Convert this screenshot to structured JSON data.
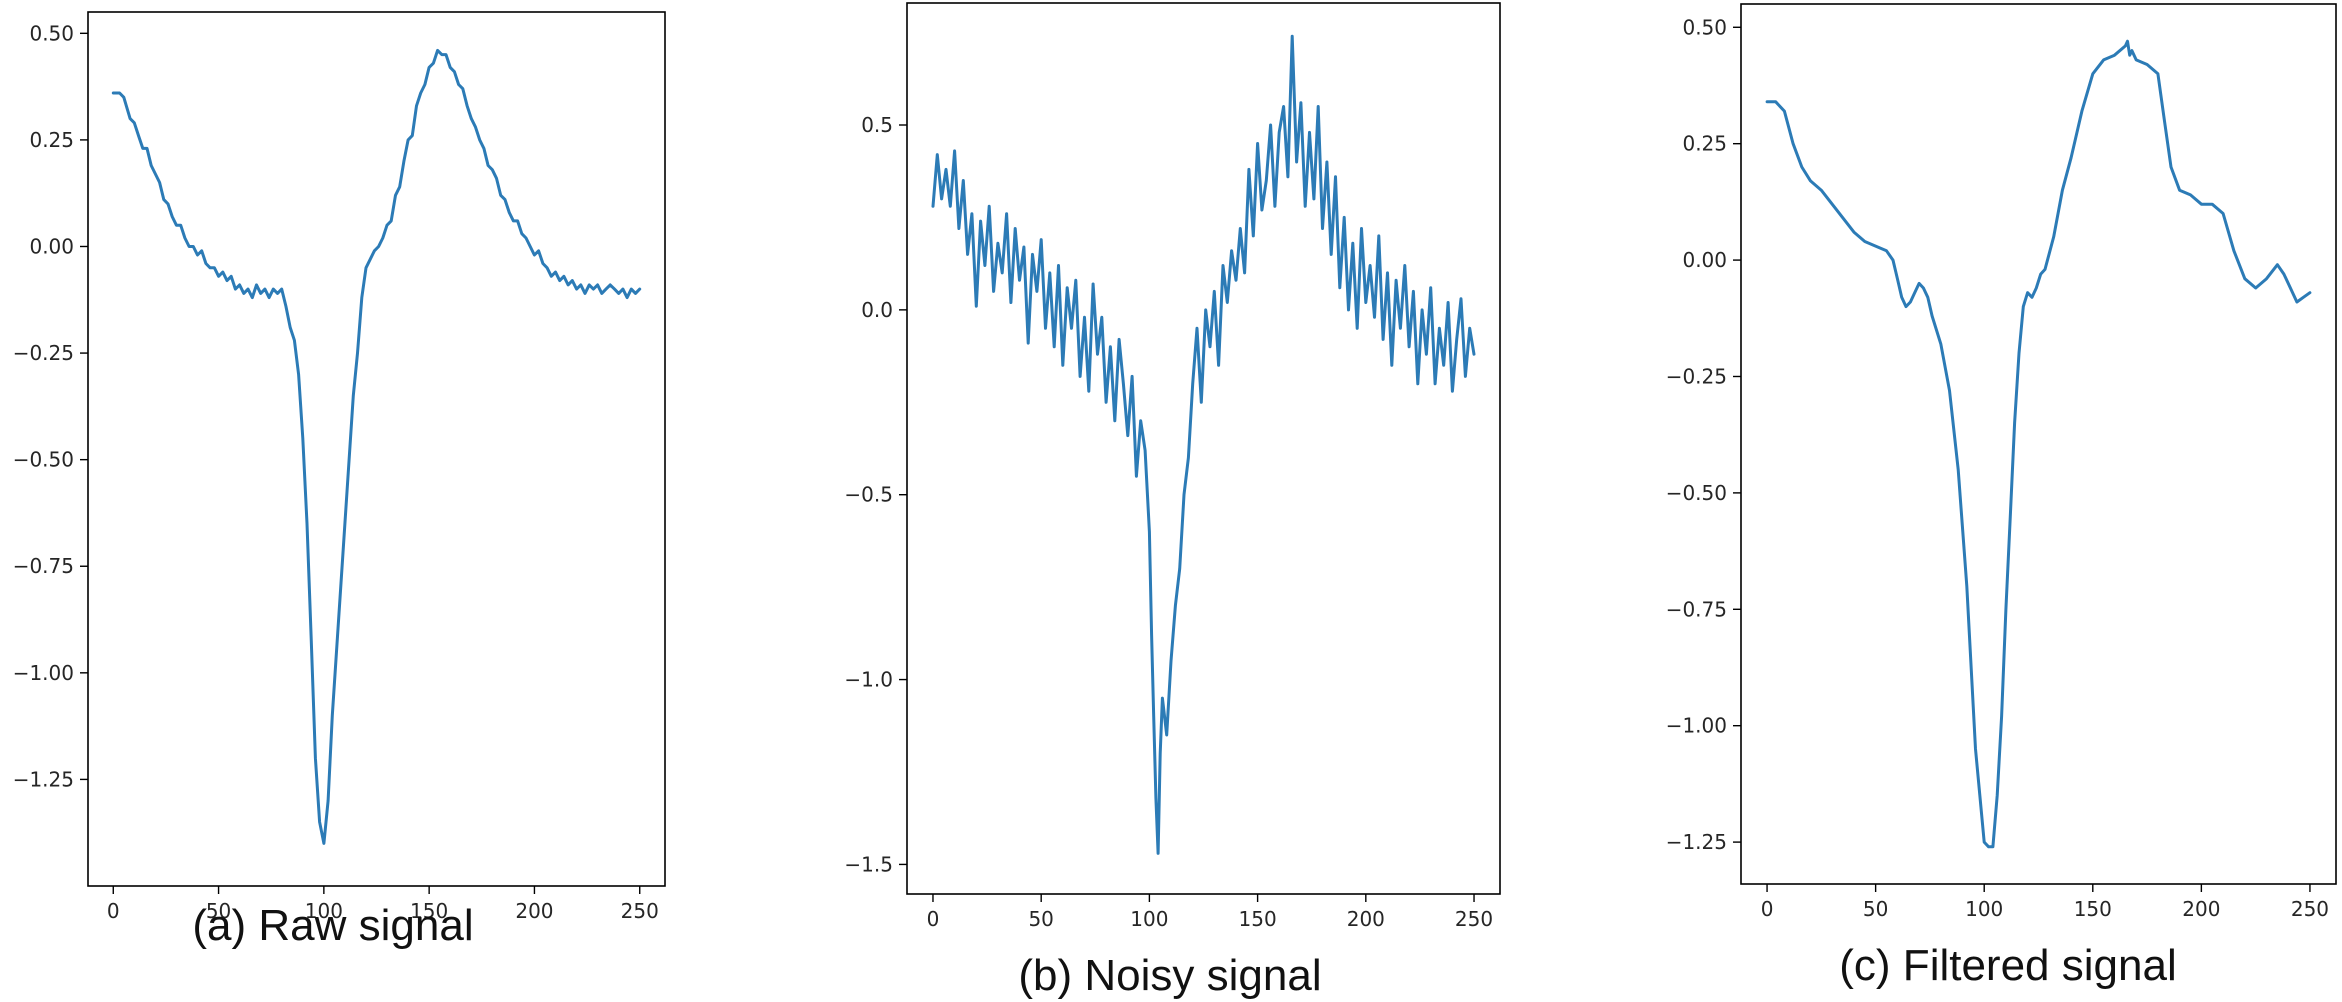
{
  "colors": {
    "series": "#2c7bb6",
    "axis": "#000000",
    "text": "#262626"
  },
  "chart_data": [
    {
      "type": "line",
      "title": "",
      "caption": "(a) Raw signal",
      "xlabel": "",
      "ylabel": "",
      "grid": false,
      "xlim": [
        -12,
        262
      ],
      "ylim": [
        -1.5,
        0.55
      ],
      "x_ticks": [
        0,
        50,
        100,
        150,
        200,
        250
      ],
      "x_tick_labels": [
        "0",
        "50",
        "100",
        "150",
        "200",
        "250"
      ],
      "y_ticks": [
        0.5,
        0.25,
        0.0,
        -0.25,
        -0.5,
        -0.75,
        -1.0,
        -1.25
      ],
      "y_tick_labels": [
        "0.50",
        "0.25",
        "0.00",
        "−0.25",
        "−0.50",
        "−0.75",
        "−1.00",
        "−1.25"
      ],
      "series": [
        {
          "x": [
            0,
            3,
            5,
            8,
            10,
            12,
            14,
            16,
            18,
            20,
            22,
            24,
            26,
            28,
            30,
            32,
            34,
            36,
            38,
            40,
            42,
            44,
            46,
            48,
            50,
            52,
            54,
            56,
            58,
            60,
            62,
            64,
            66,
            68,
            70,
            72,
            74,
            76,
            78,
            80,
            82,
            84,
            86,
            88,
            90,
            92,
            94,
            96,
            98,
            100,
            102,
            104,
            106,
            108,
            110,
            112,
            114,
            116,
            118,
            120,
            122,
            124,
            126,
            128,
            130,
            132,
            134,
            136,
            138,
            140,
            142,
            144,
            146,
            148,
            150,
            152,
            154,
            156,
            158,
            160,
            162,
            164,
            166,
            168,
            170,
            172,
            174,
            176,
            178,
            180,
            182,
            184,
            186,
            188,
            190,
            192,
            194,
            196,
            198,
            200,
            202,
            204,
            206,
            208,
            210,
            212,
            214,
            216,
            218,
            220,
            222,
            224,
            226,
            228,
            230,
            232,
            234,
            236,
            238,
            240,
            242,
            244,
            246,
            248,
            250
          ],
          "y": [
            0.36,
            0.36,
            0.35,
            0.3,
            0.29,
            0.26,
            0.23,
            0.23,
            0.19,
            0.17,
            0.15,
            0.11,
            0.1,
            0.07,
            0.05,
            0.05,
            0.02,
            0.0,
            0.0,
            -0.02,
            -0.01,
            -0.04,
            -0.05,
            -0.05,
            -0.07,
            -0.06,
            -0.08,
            -0.07,
            -0.1,
            -0.09,
            -0.11,
            -0.1,
            -0.12,
            -0.09,
            -0.11,
            -0.1,
            -0.12,
            -0.1,
            -0.11,
            -0.1,
            -0.14,
            -0.19,
            -0.22,
            -0.3,
            -0.45,
            -0.65,
            -0.92,
            -1.2,
            -1.35,
            -1.4,
            -1.3,
            -1.1,
            -0.95,
            -0.8,
            -0.65,
            -0.5,
            -0.35,
            -0.25,
            -0.12,
            -0.05,
            -0.03,
            -0.01,
            0.0,
            0.02,
            0.05,
            0.06,
            0.12,
            0.14,
            0.2,
            0.25,
            0.26,
            0.33,
            0.36,
            0.38,
            0.42,
            0.43,
            0.46,
            0.45,
            0.45,
            0.42,
            0.41,
            0.38,
            0.37,
            0.33,
            0.3,
            0.28,
            0.25,
            0.23,
            0.19,
            0.18,
            0.16,
            0.12,
            0.11,
            0.08,
            0.06,
            0.06,
            0.03,
            0.02,
            0.0,
            -0.02,
            -0.01,
            -0.04,
            -0.05,
            -0.07,
            -0.06,
            -0.08,
            -0.07,
            -0.09,
            -0.08,
            -0.1,
            -0.09,
            -0.11,
            -0.09,
            -0.1,
            -0.09,
            -0.11,
            -0.1,
            -0.09,
            -0.1,
            -0.11,
            -0.1,
            -0.12,
            -0.1,
            -0.11,
            -0.1
          ]
        }
      ]
    },
    {
      "type": "line",
      "title": "",
      "caption": "(b) Noisy signal",
      "xlabel": "",
      "ylabel": "",
      "grid": false,
      "xlim": [
        -12,
        262
      ],
      "ylim": [
        -1.58,
        0.83
      ],
      "x_ticks": [
        0,
        50,
        100,
        150,
        200,
        250
      ],
      "x_tick_labels": [
        "0",
        "50",
        "100",
        "150",
        "200",
        "250"
      ],
      "y_ticks": [
        0.5,
        0.0,
        -0.5,
        -1.0,
        -1.5
      ],
      "y_tick_labels": [
        "0.5",
        "0.0",
        "−0.5",
        "−1.0",
        "−1.5"
      ],
      "series": [
        {
          "x": [
            0,
            2,
            4,
            6,
            8,
            10,
            12,
            14,
            16,
            18,
            20,
            22,
            24,
            26,
            28,
            30,
            32,
            34,
            36,
            38,
            40,
            42,
            44,
            46,
            48,
            50,
            52,
            54,
            56,
            58,
            60,
            62,
            64,
            66,
            68,
            70,
            72,
            74,
            76,
            78,
            80,
            82,
            84,
            86,
            88,
            90,
            92,
            94,
            96,
            98,
            100,
            101,
            102,
            103,
            104,
            105,
            106,
            108,
            110,
            112,
            114,
            116,
            118,
            120,
            122,
            124,
            126,
            128,
            130,
            132,
            134,
            136,
            138,
            140,
            142,
            144,
            146,
            148,
            150,
            152,
            154,
            156,
            158,
            160,
            162,
            164,
            166,
            168,
            170,
            172,
            174,
            176,
            178,
            180,
            182,
            184,
            186,
            188,
            190,
            192,
            194,
            196,
            198,
            200,
            202,
            204,
            206,
            208,
            210,
            212,
            214,
            216,
            218,
            220,
            222,
            224,
            226,
            228,
            230,
            232,
            234,
            236,
            238,
            240,
            242,
            244,
            246,
            248,
            250
          ],
          "y": [
            0.28,
            0.42,
            0.3,
            0.38,
            0.28,
            0.43,
            0.22,
            0.35,
            0.15,
            0.26,
            0.01,
            0.24,
            0.12,
            0.28,
            0.05,
            0.18,
            0.1,
            0.26,
            0.02,
            0.22,
            0.08,
            0.17,
            -0.09,
            0.15,
            0.05,
            0.19,
            -0.05,
            0.1,
            -0.1,
            0.12,
            -0.15,
            0.06,
            -0.05,
            0.08,
            -0.18,
            -0.02,
            -0.22,
            0.07,
            -0.12,
            -0.02,
            -0.25,
            -0.1,
            -0.3,
            -0.08,
            -0.2,
            -0.34,
            -0.18,
            -0.45,
            -0.3,
            -0.38,
            -0.6,
            -0.88,
            -1.1,
            -1.32,
            -1.47,
            -1.2,
            -1.05,
            -1.15,
            -0.95,
            -0.8,
            -0.7,
            -0.5,
            -0.4,
            -0.2,
            -0.05,
            -0.25,
            0.0,
            -0.1,
            0.05,
            -0.15,
            0.12,
            0.02,
            0.16,
            0.08,
            0.22,
            0.1,
            0.38,
            0.2,
            0.45,
            0.27,
            0.35,
            0.5,
            0.28,
            0.48,
            0.55,
            0.36,
            0.74,
            0.4,
            0.56,
            0.28,
            0.48,
            0.3,
            0.55,
            0.22,
            0.4,
            0.15,
            0.36,
            0.06,
            0.25,
            0.0,
            0.18,
            -0.05,
            0.22,
            0.02,
            0.12,
            -0.02,
            0.2,
            -0.08,
            0.1,
            -0.15,
            0.08,
            -0.05,
            0.12,
            -0.1,
            0.05,
            -0.2,
            0.0,
            -0.12,
            0.06,
            -0.2,
            -0.05,
            -0.15,
            0.02,
            -0.22,
            -0.08,
            0.03,
            -0.18,
            -0.05,
            -0.12
          ]
        }
      ]
    },
    {
      "type": "line",
      "title": "",
      "caption": "(c) Filtered signal",
      "xlabel": "",
      "ylabel": "",
      "grid": false,
      "xlim": [
        -12,
        262
      ],
      "ylim": [
        -1.34,
        0.55
      ],
      "x_ticks": [
        0,
        50,
        100,
        150,
        200,
        250
      ],
      "x_tick_labels": [
        "0",
        "50",
        "100",
        "150",
        "200",
        "250"
      ],
      "y_ticks": [
        0.5,
        0.25,
        0.0,
        -0.25,
        -0.5,
        -0.75,
        -1.0,
        -1.25
      ],
      "y_tick_labels": [
        "0.50",
        "0.25",
        "0.00",
        "−0.25",
        "−0.50",
        "−0.75",
        "−1.00",
        "−1.25"
      ],
      "series": [
        {
          "x": [
            0,
            4,
            8,
            12,
            16,
            20,
            25,
            30,
            35,
            40,
            45,
            50,
            55,
            58,
            60,
            62,
            64,
            66,
            68,
            70,
            72,
            74,
            76,
            80,
            84,
            88,
            92,
            96,
            100,
            102,
            104,
            106,
            108,
            110,
            112,
            114,
            116,
            118,
            120,
            122,
            124,
            126,
            128,
            132,
            136,
            140,
            145,
            150,
            155,
            160,
            165,
            166,
            167,
            168,
            170,
            175,
            180,
            183,
            186,
            190,
            195,
            200,
            205,
            210,
            215,
            220,
            225,
            230,
            235,
            238,
            241,
            244,
            247,
            250
          ],
          "y": [
            0.34,
            0.34,
            0.32,
            0.25,
            0.2,
            0.17,
            0.15,
            0.12,
            0.09,
            0.06,
            0.04,
            0.03,
            0.02,
            0.0,
            -0.04,
            -0.08,
            -0.1,
            -0.09,
            -0.07,
            -0.05,
            -0.06,
            -0.08,
            -0.12,
            -0.18,
            -0.28,
            -0.45,
            -0.7,
            -1.05,
            -1.25,
            -1.26,
            -1.26,
            -1.15,
            -0.98,
            -0.75,
            -0.55,
            -0.35,
            -0.2,
            -0.1,
            -0.07,
            -0.08,
            -0.06,
            -0.03,
            -0.02,
            0.05,
            0.15,
            0.22,
            0.32,
            0.4,
            0.43,
            0.44,
            0.46,
            0.47,
            0.44,
            0.45,
            0.43,
            0.42,
            0.4,
            0.3,
            0.2,
            0.15,
            0.14,
            0.12,
            0.12,
            0.1,
            0.02,
            -0.04,
            -0.06,
            -0.04,
            -0.01,
            -0.03,
            -0.06,
            -0.09,
            -0.08,
            -0.07
          ]
        }
      ]
    }
  ]
}
